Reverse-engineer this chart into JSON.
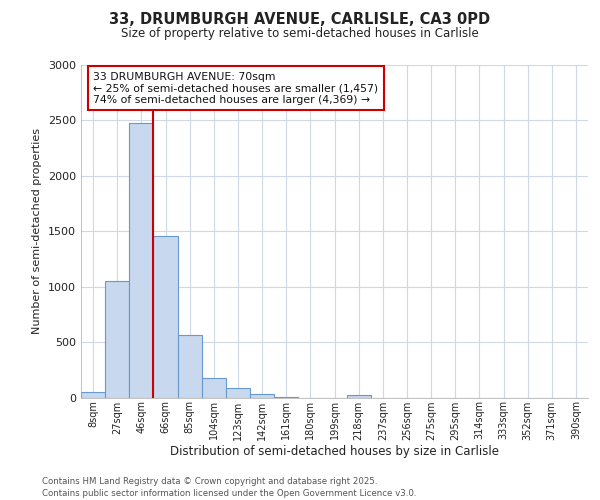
{
  "title_line1": "33, DRUMBURGH AVENUE, CARLISLE, CA3 0PD",
  "title_line2": "Size of property relative to semi-detached houses in Carlisle",
  "xlabel": "Distribution of semi-detached houses by size in Carlisle",
  "ylabel": "Number of semi-detached properties",
  "categories": [
    "8sqm",
    "27sqm",
    "46sqm",
    "66sqm",
    "85sqm",
    "104sqm",
    "123sqm",
    "142sqm",
    "161sqm",
    "180sqm",
    "199sqm",
    "218sqm",
    "237sqm",
    "256sqm",
    "275sqm",
    "295sqm",
    "314sqm",
    "333sqm",
    "352sqm",
    "371sqm",
    "390sqm"
  ],
  "values": [
    50,
    1050,
    2480,
    1460,
    560,
    180,
    90,
    30,
    5,
    0,
    0,
    20,
    0,
    0,
    0,
    0,
    0,
    0,
    0,
    0,
    0
  ],
  "bar_color": "#c8d8ee",
  "bar_edge_color": "#6699cc",
  "vline_x_index": 2.5,
  "annotation_text": "33 DRUMBURGH AVENUE: 70sqm\n← 25% of semi-detached houses are smaller (1,457)\n74% of semi-detached houses are larger (4,369) →",
  "annotation_box_color": "#ffffff",
  "annotation_box_edge": "#cc0000",
  "vline_color": "#cc0000",
  "ylim": [
    0,
    3000
  ],
  "yticks": [
    0,
    500,
    1000,
    1500,
    2000,
    2500,
    3000
  ],
  "footer_line1": "Contains HM Land Registry data © Crown copyright and database right 2025.",
  "footer_line2": "Contains public sector information licensed under the Open Government Licence v3.0.",
  "background_color": "#ffffff",
  "grid_color": "#d0d8e8"
}
